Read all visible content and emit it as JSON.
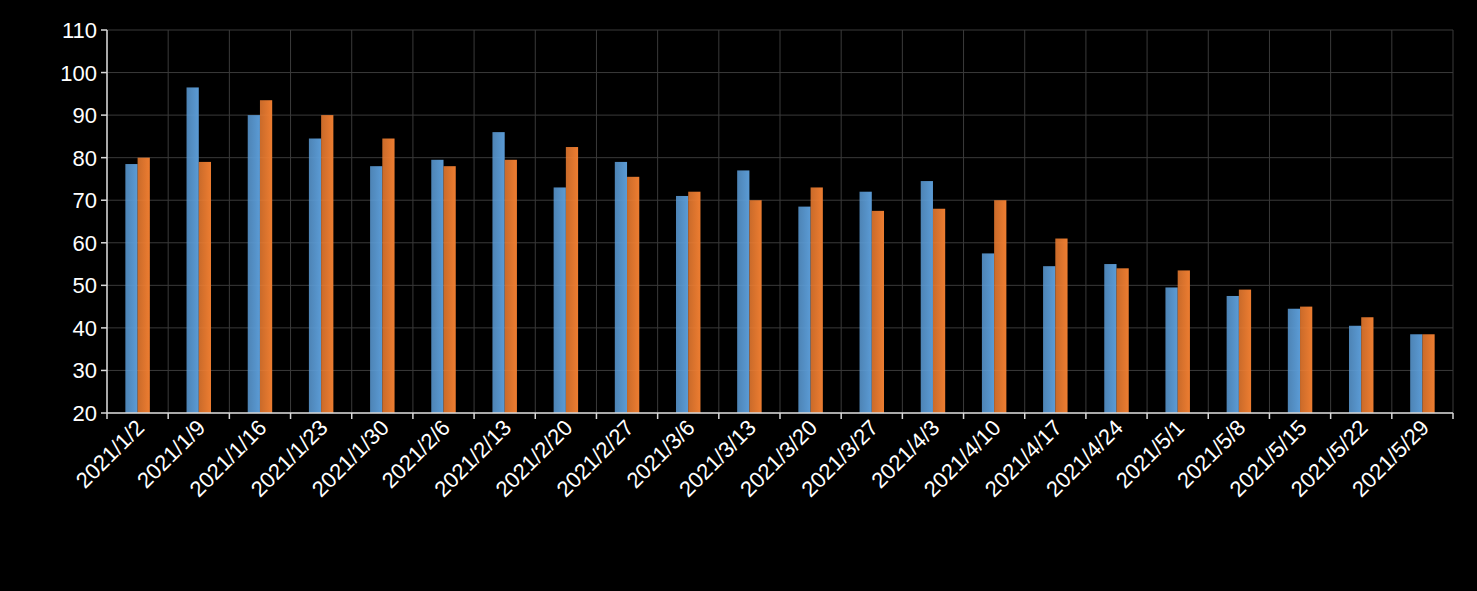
{
  "chart_data": {
    "type": "bar",
    "categories": [
      "2021/1/2",
      "2021/1/9",
      "2021/1/16",
      "2021/1/23",
      "2021/1/30",
      "2021/2/6",
      "2021/2/13",
      "2021/2/20",
      "2021/2/27",
      "2021/3/6",
      "2021/3/13",
      "2021/3/20",
      "2021/3/27",
      "2021/4/3",
      "2021/4/10",
      "2021/4/17",
      "2021/4/24",
      "2021/5/1",
      "2021/5/8",
      "2021/5/15",
      "2021/5/22",
      "2021/5/29"
    ],
    "series": [
      {
        "color": "#5b9bd5",
        "values": [
          78.5,
          96.5,
          90,
          84.5,
          78,
          79.5,
          86,
          73,
          79,
          71,
          77,
          68.5,
          72,
          74.5,
          57.5,
          54.5,
          55,
          49.5,
          47.5,
          44.5,
          40.5,
          38.5
        ]
      },
      {
        "color": "#ed7d31",
        "values": [
          80,
          79,
          93.5,
          90,
          84.5,
          78,
          79.5,
          82.5,
          75.5,
          72,
          70,
          73,
          67.5,
          68,
          70,
          61,
          54,
          53.5,
          49,
          45,
          42.5,
          38.5
        ]
      }
    ],
    "ylim": [
      20,
      110
    ],
    "yticks": [
      20,
      30,
      40,
      50,
      60,
      70,
      80,
      90,
      100,
      110
    ],
    "grid": true
  }
}
